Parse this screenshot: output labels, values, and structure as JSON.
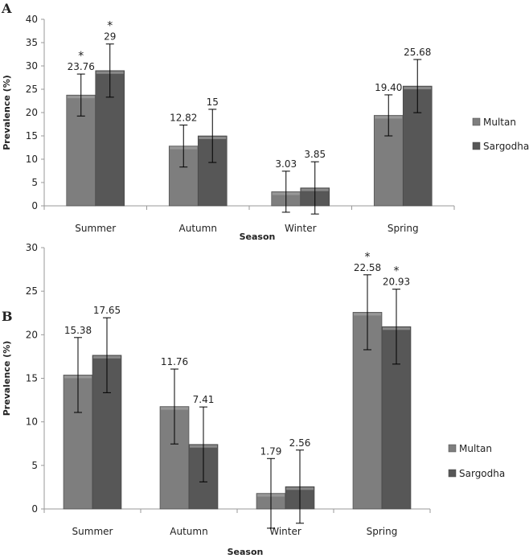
{
  "colors": {
    "Multan": "#7e7e7e",
    "Sargodha": "#575757"
  },
  "chart_data": [
    {
      "type": "bar",
      "panel": "A",
      "title": "",
      "xlabel": "Season",
      "ylabel": "Prevalence (%)",
      "ylim": [
        0,
        40
      ],
      "yticks": [
        0,
        5,
        10,
        15,
        20,
        25,
        30,
        35,
        40
      ],
      "categories": [
        "Summer",
        "Autumn",
        "Winter",
        "Spring"
      ],
      "legend": "right",
      "series": [
        {
          "name": "Multan",
          "values": [
            23.76,
            12.82,
            3.03,
            19.4
          ],
          "labels": [
            "23.76",
            "12.82",
            "3.03",
            "19.40"
          ],
          "errors": [
            4.5,
            4.5,
            4.4,
            4.4
          ],
          "significant": [
            true,
            false,
            false,
            false
          ]
        },
        {
          "name": "Sargodha",
          "values": [
            29,
            15,
            3.85,
            25.68
          ],
          "labels": [
            "29",
            "15",
            "3.85",
            "25.68"
          ],
          "errors": [
            5.7,
            5.7,
            5.6,
            5.7
          ],
          "significant": [
            true,
            false,
            false,
            false
          ]
        }
      ]
    },
    {
      "type": "bar",
      "panel": "B",
      "title": "",
      "xlabel": "Season",
      "ylabel": "Prevalence (%)",
      "ylim": [
        0,
        30
      ],
      "yticks": [
        0,
        5,
        10,
        15,
        20,
        25,
        30
      ],
      "categories": [
        "Summer",
        "Autumn",
        "Winter",
        "Spring"
      ],
      "legend": "right",
      "series": [
        {
          "name": "Multan",
          "values": [
            15.38,
            11.76,
            1.79,
            22.58
          ],
          "labels": [
            "15.38",
            "11.76",
            "1.79",
            "22.58"
          ],
          "errors": [
            4.3,
            4.3,
            4.0,
            4.3
          ],
          "significant": [
            false,
            false,
            false,
            true
          ]
        },
        {
          "name": "Sargodha",
          "values": [
            17.65,
            7.41,
            2.56,
            20.93
          ],
          "labels": [
            "17.65",
            "7.41",
            "2.56",
            "20.93"
          ],
          "errors": [
            4.3,
            4.3,
            4.2,
            4.3
          ],
          "significant": [
            false,
            false,
            false,
            true
          ]
        }
      ]
    }
  ]
}
